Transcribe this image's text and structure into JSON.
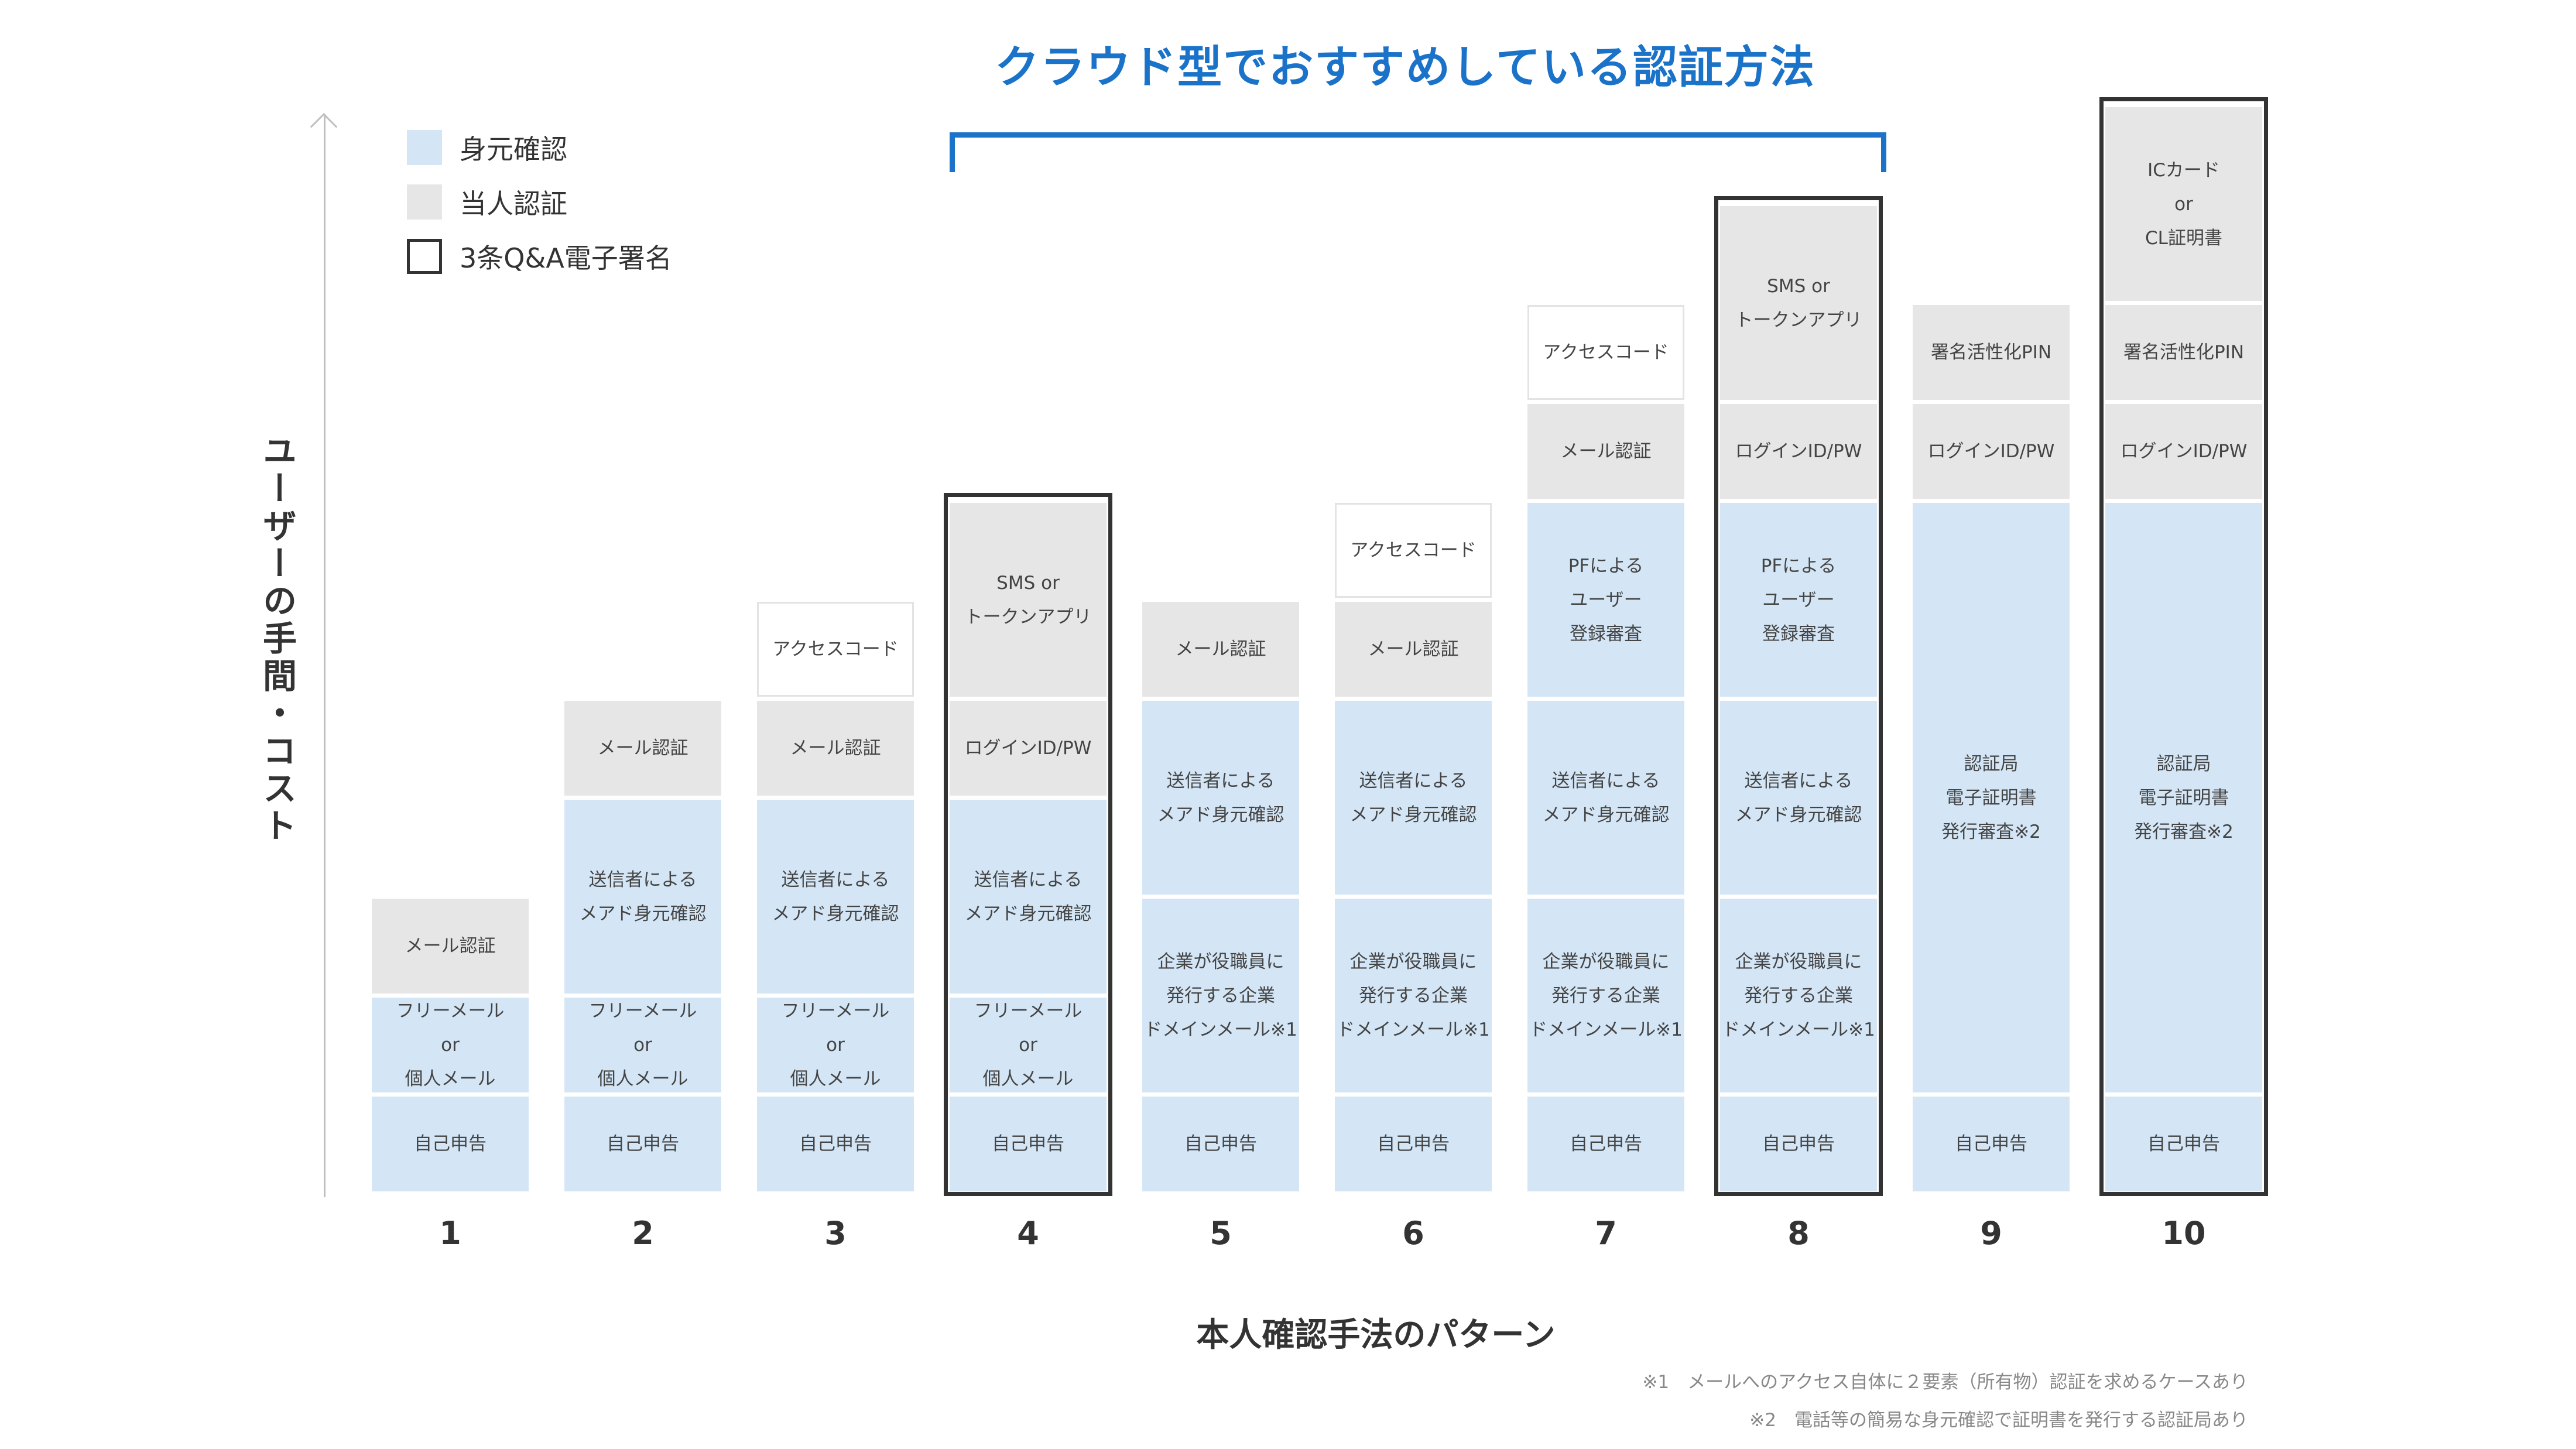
{
  "headline": "クラウド型でおすすめしている認証方法",
  "chart_data": {
    "type": "table",
    "ylabel": "ユーザーの手間・コスト",
    "xlabel": "本人確認手法のパターン",
    "legend": [
      {
        "label": "身元確認",
        "color": "#d4e6f6"
      },
      {
        "label": "当人認証",
        "color": "#e6e6e6"
      },
      {
        "label": "3条Q&A電子署名",
        "color": "#ffffff"
      }
    ],
    "highlight": {
      "label": "クラウド型でおすすめしている認証方法",
      "from_pattern": 4,
      "to_pattern": 8
    },
    "patterns": [
      {
        "label": "1",
        "framed": false,
        "segments": [
          {
            "text": "自己申告",
            "kind": "id",
            "size": 1
          },
          {
            "text": "フリーメール\nor\n個人メール",
            "kind": "id",
            "size": 1
          },
          {
            "text": "メール認証",
            "kind": "auth",
            "size": 1
          }
        ]
      },
      {
        "label": "2",
        "framed": false,
        "segments": [
          {
            "text": "自己申告",
            "kind": "id",
            "size": 1
          },
          {
            "text": "フリーメール\nor\n個人メール",
            "kind": "id",
            "size": 1
          },
          {
            "text": "送信者による\nメアド身元確認",
            "kind": "id",
            "size": 2
          },
          {
            "text": "メール認証",
            "kind": "auth",
            "size": 1
          }
        ]
      },
      {
        "label": "3",
        "framed": false,
        "segments": [
          {
            "text": "自己申告",
            "kind": "id",
            "size": 1
          },
          {
            "text": "フリーメール\nor\n個人メール",
            "kind": "id",
            "size": 1
          },
          {
            "text": "送信者による\nメアド身元確認",
            "kind": "id",
            "size": 2
          },
          {
            "text": "メール認証",
            "kind": "auth",
            "size": 1
          },
          {
            "text": "アクセスコード",
            "kind": "white",
            "size": 1
          }
        ]
      },
      {
        "label": "4",
        "framed": true,
        "segments": [
          {
            "text": "自己申告",
            "kind": "id",
            "size": 1
          },
          {
            "text": "フリーメール\nor\n個人メール",
            "kind": "id",
            "size": 1
          },
          {
            "text": "送信者による\nメアド身元確認",
            "kind": "id",
            "size": 2
          },
          {
            "text": "ログインID/PW",
            "kind": "auth",
            "size": 1
          },
          {
            "text": "SMS or\nトークンアプリ",
            "kind": "auth",
            "size": 2
          }
        ]
      },
      {
        "label": "5",
        "framed": false,
        "segments": [
          {
            "text": "自己申告",
            "kind": "id",
            "size": 1
          },
          {
            "text": "企業が役職員に\n発行する企業\nドメインメール※1",
            "kind": "id",
            "size": 2
          },
          {
            "text": "送信者による\nメアド身元確認",
            "kind": "id",
            "size": 2
          },
          {
            "text": "メール認証",
            "kind": "auth",
            "size": 1
          }
        ]
      },
      {
        "label": "6",
        "framed": false,
        "segments": [
          {
            "text": "自己申告",
            "kind": "id",
            "size": 1
          },
          {
            "text": "企業が役職員に\n発行する企業\nドメインメール※1",
            "kind": "id",
            "size": 2
          },
          {
            "text": "送信者による\nメアド身元確認",
            "kind": "id",
            "size": 2
          },
          {
            "text": "メール認証",
            "kind": "auth",
            "size": 1
          },
          {
            "text": "アクセスコード",
            "kind": "white",
            "size": 1
          }
        ]
      },
      {
        "label": "7",
        "framed": false,
        "segments": [
          {
            "text": "自己申告",
            "kind": "id",
            "size": 1
          },
          {
            "text": "企業が役職員に\n発行する企業\nドメインメール※1",
            "kind": "id",
            "size": 2
          },
          {
            "text": "送信者による\nメアド身元確認",
            "kind": "id",
            "size": 2
          },
          {
            "text": "PFによる\nユーザー\n登録審査",
            "kind": "id",
            "size": 2
          },
          {
            "text": "メール認証",
            "kind": "auth",
            "size": 1
          },
          {
            "text": "アクセスコード",
            "kind": "white",
            "size": 1
          }
        ]
      },
      {
        "label": "8",
        "framed": true,
        "segments": [
          {
            "text": "自己申告",
            "kind": "id",
            "size": 1
          },
          {
            "text": "企業が役職員に\n発行する企業\nドメインメール※1",
            "kind": "id",
            "size": 2
          },
          {
            "text": "送信者による\nメアド身元確認",
            "kind": "id",
            "size": 2
          },
          {
            "text": "PFによる\nユーザー\n登録審査",
            "kind": "id",
            "size": 2
          },
          {
            "text": "ログインID/PW",
            "kind": "auth",
            "size": 1
          },
          {
            "text": "SMS or\nトークンアプリ",
            "kind": "auth",
            "size": 2
          }
        ]
      },
      {
        "label": "9",
        "framed": false,
        "segments": [
          {
            "text": "自己申告",
            "kind": "id",
            "size": 1
          },
          {
            "text": "認証局\n電子証明書\n発行審査※2",
            "kind": "id",
            "size": 6
          },
          {
            "text": "ログインID/PW",
            "kind": "auth",
            "size": 1
          },
          {
            "text": "署名活性化PIN",
            "kind": "auth",
            "size": 1
          }
        ]
      },
      {
        "label": "10",
        "framed": true,
        "segments": [
          {
            "text": "自己申告",
            "kind": "id",
            "size": 1
          },
          {
            "text": "認証局\n電子証明書\n発行審査※2",
            "kind": "id",
            "size": 6
          },
          {
            "text": "ログインID/PW",
            "kind": "auth",
            "size": 1
          },
          {
            "text": "署名活性化PIN",
            "kind": "auth",
            "size": 1
          },
          {
            "text": "ICカード\nor\nCL証明書",
            "kind": "auth",
            "size": 2
          }
        ]
      }
    ]
  },
  "footnotes": [
    "※1　メールへのアクセス自体に２要素（所有物）認証を求めるケースあり",
    "※2　電話等の簡易な身元確認で証明書を発行する認証局あり"
  ]
}
